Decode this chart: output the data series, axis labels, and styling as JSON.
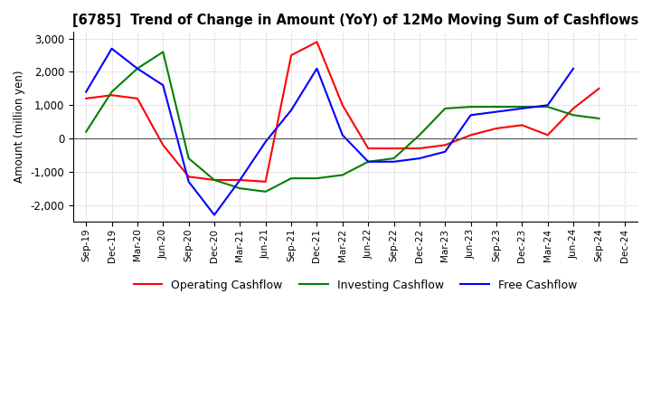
{
  "title": "[6785]  Trend of Change in Amount (YoY) of 12Mo Moving Sum of Cashflows",
  "ylabel": "Amount (million yen)",
  "ylim": [
    -2500,
    3200
  ],
  "yticks": [
    -2000,
    -1000,
    0,
    1000,
    2000,
    3000
  ],
  "x_labels": [
    "Sep-19",
    "Dec-19",
    "Mar-20",
    "Jun-20",
    "Sep-20",
    "Dec-20",
    "Mar-21",
    "Jun-21",
    "Sep-21",
    "Dec-21",
    "Mar-22",
    "Jun-22",
    "Sep-22",
    "Dec-22",
    "Mar-23",
    "Jun-23",
    "Sep-23",
    "Dec-23",
    "Mar-24",
    "Jun-24",
    "Sep-24",
    "Dec-24"
  ],
  "operating": [
    1200,
    1300,
    1200,
    -200,
    -1150,
    -1250,
    -1250,
    -1300,
    2500,
    2900,
    1000,
    -300,
    -300,
    -300,
    -200,
    100,
    300,
    400,
    100,
    900,
    1500,
    null
  ],
  "investing": [
    200,
    1400,
    2100,
    2600,
    -600,
    -1250,
    -1500,
    -1600,
    -1200,
    -1200,
    -1100,
    -700,
    -600,
    100,
    900,
    950,
    950,
    950,
    950,
    700,
    600,
    null
  ],
  "free": [
    1400,
    2700,
    2100,
    1600,
    -1300,
    -2300,
    -1250,
    -100,
    850,
    2100,
    100,
    -700,
    -700,
    -600,
    -400,
    700,
    800,
    900,
    1000,
    2100,
    null,
    null
  ],
  "operating_color": "#ff0000",
  "investing_color": "#008000",
  "free_color": "#0000ff",
  "bg_color": "#ffffff",
  "grid_color": "#b0b0b0"
}
